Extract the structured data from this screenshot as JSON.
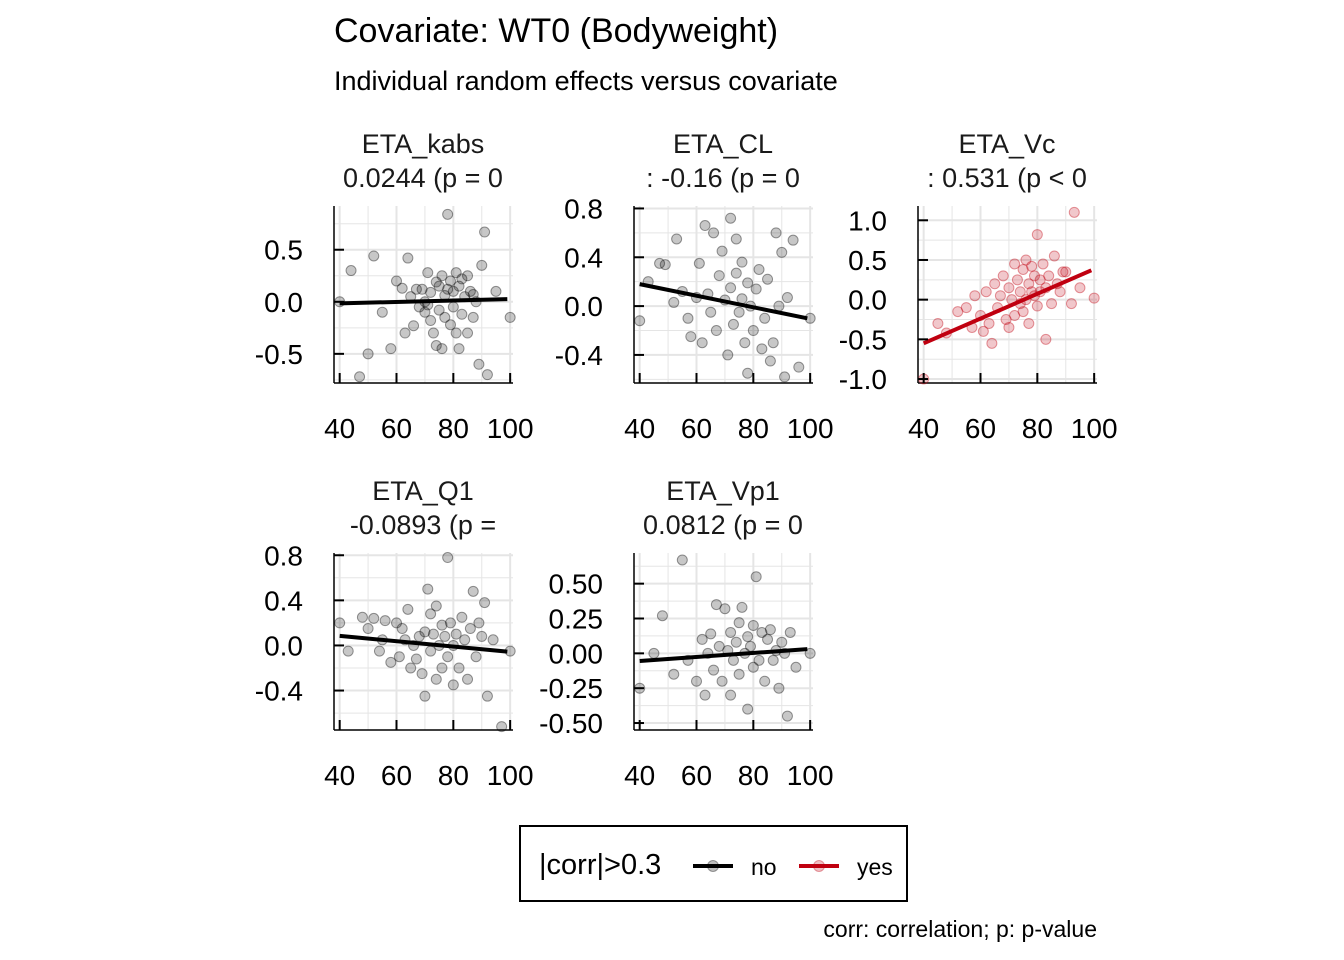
{
  "title": "Covariate: WT0 (Bodyweight)",
  "subtitle": "Individual random effects versus covariate",
  "caption": "corr: correlation; p: p-value",
  "legend": {
    "title": "|corr|>0.3",
    "items": [
      {
        "label": "no",
        "color": "#000000"
      },
      {
        "label": "yes",
        "color": "#c00010"
      }
    ]
  },
  "colors": {
    "no": "#000000",
    "yes": "#c00010",
    "grid": "#e5e5e5"
  },
  "chart_data": [
    {
      "type": "scatter",
      "name": "ETA_kabs",
      "stat_line": "0.0244 (p = 0",
      "x_ticks": [
        40,
        60,
        80,
        100
      ],
      "y_ticks": [
        -0.5,
        0.0,
        0.5
      ],
      "y_tick_labels": [
        "-0.5",
        "0.0",
        "0.5"
      ],
      "xlim": [
        38,
        101
      ],
      "ylim": [
        -0.78,
        0.92
      ],
      "highlight": false,
      "fit": [
        [
          40,
          -0.015
        ],
        [
          99,
          0.025
        ]
      ],
      "points": [
        [
          40,
          0.0
        ],
        [
          44,
          0.3
        ],
        [
          47,
          -0.72
        ],
        [
          50,
          -0.5
        ],
        [
          52,
          0.44
        ],
        [
          55,
          -0.1
        ],
        [
          58,
          -0.45
        ],
        [
          60,
          0.2
        ],
        [
          62,
          0.13
        ],
        [
          63,
          -0.3
        ],
        [
          64,
          0.42
        ],
        [
          65,
          0.05
        ],
        [
          67,
          0.12
        ],
        [
          68,
          -0.05
        ],
        [
          69,
          0.12
        ],
        [
          70,
          0.0
        ],
        [
          71,
          0.28
        ],
        [
          72,
          0.09
        ],
        [
          72,
          -0.18
        ],
        [
          73,
          -0.3
        ],
        [
          74,
          -0.42
        ],
        [
          75,
          0.15
        ],
        [
          75,
          -0.08
        ],
        [
          76,
          0.25
        ],
        [
          77,
          0.06
        ],
        [
          77,
          -0.15
        ],
        [
          78,
          0.84
        ],
        [
          78,
          0.12
        ],
        [
          79,
          -0.22
        ],
        [
          79,
          0.2
        ],
        [
          80,
          -0.05
        ],
        [
          80,
          0.1
        ],
        [
          81,
          0.28
        ],
        [
          81,
          -0.3
        ],
        [
          82,
          0.15
        ],
        [
          82,
          -0.45
        ],
        [
          83,
          -0.12
        ],
        [
          84,
          0.05
        ],
        [
          85,
          -0.3
        ],
        [
          85,
          0.25
        ],
        [
          86,
          0.1
        ],
        [
          87,
          -0.15
        ],
        [
          88,
          0.0
        ],
        [
          89,
          -0.6
        ],
        [
          90,
          0.35
        ],
        [
          91,
          0.67
        ],
        [
          92,
          -0.7
        ],
        [
          95,
          0.1
        ],
        [
          100,
          -0.15
        ],
        [
          66,
          -0.23
        ],
        [
          70,
          -0.1
        ],
        [
          74,
          0.19
        ],
        [
          76,
          -0.45
        ],
        [
          83,
          0.22
        ],
        [
          87,
          0.07
        ],
        [
          71,
          -0.03
        ]
      ]
    },
    {
      "type": "scatter",
      "name": "ETA_CL",
      "stat_line": ": -0.16 (p = 0",
      "x_ticks": [
        40,
        60,
        80,
        100
      ],
      "y_ticks": [
        -0.4,
        0.0,
        0.4,
        0.8
      ],
      "y_tick_labels": [
        "-0.4",
        "0.0",
        "0.4",
        "0.8"
      ],
      "xlim": [
        38,
        101
      ],
      "ylim": [
        -0.63,
        0.82
      ],
      "highlight": false,
      "fit": [
        [
          40,
          0.18
        ],
        [
          99,
          -0.1
        ]
      ],
      "points": [
        [
          40,
          -0.12
        ],
        [
          43,
          0.2
        ],
        [
          47,
          0.35
        ],
        [
          49,
          0.34
        ],
        [
          52,
          0.03
        ],
        [
          53,
          0.55
        ],
        [
          55,
          0.12
        ],
        [
          57,
          -0.1
        ],
        [
          58,
          -0.25
        ],
        [
          60,
          0.07
        ],
        [
          61,
          0.35
        ],
        [
          62,
          -0.3
        ],
        [
          63,
          0.66
        ],
        [
          64,
          0.1
        ],
        [
          65,
          -0.05
        ],
        [
          66,
          0.6
        ],
        [
          67,
          -0.2
        ],
        [
          68,
          0.25
        ],
        [
          69,
          0.45
        ],
        [
          70,
          0.05
        ],
        [
          71,
          -0.4
        ],
        [
          72,
          0.72
        ],
        [
          72,
          0.15
        ],
        [
          73,
          -0.15
        ],
        [
          74,
          0.55
        ],
        [
          74,
          0.27
        ],
        [
          75,
          -0.05
        ],
        [
          76,
          0.06
        ],
        [
          76,
          0.36
        ],
        [
          77,
          -0.3
        ],
        [
          78,
          0.19
        ],
        [
          78,
          -0.55
        ],
        [
          79,
          0.0
        ],
        [
          80,
          -0.2
        ],
        [
          81,
          0.14
        ],
        [
          82,
          0.3
        ],
        [
          83,
          -0.35
        ],
        [
          84,
          -0.1
        ],
        [
          85,
          0.22
        ],
        [
          86,
          -0.45
        ],
        [
          87,
          -0.3
        ],
        [
          88,
          0.6
        ],
        [
          89,
          0.0
        ],
        [
          90,
          0.44
        ],
        [
          91,
          -0.58
        ],
        [
          92,
          0.07
        ],
        [
          94,
          0.54
        ],
        [
          96,
          -0.5
        ],
        [
          100,
          -0.1
        ]
      ]
    },
    {
      "type": "scatter",
      "name": "ETA_Vc",
      "stat_line": ": 0.531 (p < 0",
      "x_ticks": [
        40,
        60,
        80,
        100
      ],
      "y_ticks": [
        -1.0,
        -0.5,
        0.0,
        0.5,
        1.0
      ],
      "y_tick_labels": [
        "-1.0",
        "-0.5",
        "0.0",
        "0.5",
        "1.0"
      ],
      "xlim": [
        38,
        101
      ],
      "ylim": [
        -1.05,
        1.18
      ],
      "highlight": true,
      "fit": [
        [
          40,
          -0.55
        ],
        [
          99,
          0.37
        ]
      ],
      "points": [
        [
          40,
          -1.0
        ],
        [
          45,
          -0.3
        ],
        [
          48,
          -0.42
        ],
        [
          52,
          -0.15
        ],
        [
          55,
          -0.1
        ],
        [
          57,
          -0.35
        ],
        [
          58,
          0.05
        ],
        [
          60,
          -0.2
        ],
        [
          61,
          -0.4
        ],
        [
          62,
          0.1
        ],
        [
          63,
          -0.3
        ],
        [
          64,
          -0.55
        ],
        [
          65,
          0.2
        ],
        [
          66,
          -0.1
        ],
        [
          67,
          0.05
        ],
        [
          68,
          0.3
        ],
        [
          69,
          -0.25
        ],
        [
          70,
          0.15
        ],
        [
          70,
          -0.35
        ],
        [
          71,
          0.0
        ],
        [
          72,
          0.45
        ],
        [
          72,
          -0.2
        ],
        [
          73,
          0.25
        ],
        [
          74,
          0.1
        ],
        [
          74,
          -0.05
        ],
        [
          75,
          0.38
        ],
        [
          75,
          -0.15
        ],
        [
          76,
          0.5
        ],
        [
          76,
          0.0
        ],
        [
          77,
          0.2
        ],
        [
          77,
          -0.3
        ],
        [
          78,
          0.42
        ],
        [
          78,
          0.1
        ],
        [
          79,
          0.05
        ],
        [
          79,
          0.3
        ],
        [
          80,
          0.82
        ],
        [
          80,
          -0.08
        ],
        [
          81,
          0.25
        ],
        [
          81,
          0.1
        ],
        [
          82,
          0.45
        ],
        [
          83,
          -0.5
        ],
        [
          83,
          0.15
        ],
        [
          84,
          0.3
        ],
        [
          85,
          -0.05
        ],
        [
          86,
          0.55
        ],
        [
          87,
          0.2
        ],
        [
          88,
          0.1
        ],
        [
          89,
          0.35
        ],
        [
          90,
          0.35
        ],
        [
          92,
          -0.05
        ],
        [
          93,
          1.1
        ],
        [
          95,
          0.15
        ],
        [
          100,
          0.02
        ]
      ]
    },
    {
      "type": "scatter",
      "name": "ETA_Q1",
      "stat_line": "-0.0893 (p =",
      "x_ticks": [
        40,
        60,
        80,
        100
      ],
      "y_ticks": [
        -0.4,
        0.0,
        0.4,
        0.8
      ],
      "y_tick_labels": [
        "-0.4",
        "0.0",
        "0.4",
        "0.8"
      ],
      "xlim": [
        38,
        101
      ],
      "ylim": [
        -0.75,
        0.82
      ],
      "highlight": false,
      "fit": [
        [
          40,
          0.085
        ],
        [
          99,
          -0.055
        ]
      ],
      "points": [
        [
          40,
          0.2
        ],
        [
          43,
          -0.05
        ],
        [
          48,
          0.25
        ],
        [
          50,
          0.15
        ],
        [
          52,
          0.24
        ],
        [
          54,
          -0.05
        ],
        [
          55,
          0.05
        ],
        [
          56,
          0.22
        ],
        [
          58,
          -0.15
        ],
        [
          60,
          0.2
        ],
        [
          61,
          -0.1
        ],
        [
          62,
          0.15
        ],
        [
          63,
          0.05
        ],
        [
          64,
          0.32
        ],
        [
          65,
          -0.2
        ],
        [
          66,
          0.0
        ],
        [
          67,
          -0.12
        ],
        [
          68,
          0.08
        ],
        [
          69,
          -0.25
        ],
        [
          70,
          -0.45
        ],
        [
          70,
          0.12
        ],
        [
          71,
          0.5
        ],
        [
          72,
          -0.05
        ],
        [
          72,
          0.28
        ],
        [
          73,
          0.1
        ],
        [
          74,
          -0.3
        ],
        [
          74,
          0.35
        ],
        [
          75,
          0.0
        ],
        [
          76,
          0.18
        ],
        [
          76,
          -0.2
        ],
        [
          77,
          0.08
        ],
        [
          78,
          0.78
        ],
        [
          78,
          -0.1
        ],
        [
          79,
          0.2
        ],
        [
          80,
          0.0
        ],
        [
          80,
          -0.35
        ],
        [
          81,
          0.1
        ],
        [
          82,
          -0.2
        ],
        [
          83,
          0.25
        ],
        [
          84,
          0.05
        ],
        [
          85,
          -0.3
        ],
        [
          86,
          0.15
        ],
        [
          87,
          0.48
        ],
        [
          88,
          -0.1
        ],
        [
          89,
          0.2
        ],
        [
          90,
          0.08
        ],
        [
          91,
          0.38
        ],
        [
          92,
          -0.45
        ],
        [
          94,
          0.05
        ],
        [
          97,
          -0.72
        ],
        [
          100,
          -0.05
        ]
      ]
    },
    {
      "type": "scatter",
      "name": "ETA_Vp1",
      "stat_line": "0.0812 (p = 0",
      "x_ticks": [
        40,
        60,
        80,
        100
      ],
      "y_ticks": [
        -0.5,
        -0.25,
        0.0,
        0.25,
        0.5
      ],
      "y_tick_labels": [
        "-0.50",
        "-0.25",
        "0.00",
        "0.25",
        "0.50"
      ],
      "xlim": [
        38,
        101
      ],
      "ylim": [
        -0.55,
        0.72
      ],
      "highlight": false,
      "fit": [
        [
          40,
          -0.055
        ],
        [
          99,
          0.03
        ]
      ],
      "points": [
        [
          40,
          -0.25
        ],
        [
          45,
          0.0
        ],
        [
          48,
          0.27
        ],
        [
          52,
          -0.15
        ],
        [
          55,
          0.67
        ],
        [
          57,
          -0.05
        ],
        [
          60,
          -0.2
        ],
        [
          62,
          0.1
        ],
        [
          63,
          -0.3
        ],
        [
          64,
          0.0
        ],
        [
          65,
          0.14
        ],
        [
          66,
          -0.12
        ],
        [
          67,
          0.35
        ],
        [
          68,
          0.05
        ],
        [
          69,
          -0.2
        ],
        [
          70,
          0.32
        ],
        [
          71,
          0.02
        ],
        [
          72,
          -0.3
        ],
        [
          72,
          0.15
        ],
        [
          73,
          -0.05
        ],
        [
          74,
          0.08
        ],
        [
          75,
          0.22
        ],
        [
          75,
          -0.15
        ],
        [
          76,
          0.33
        ],
        [
          77,
          0.0
        ],
        [
          78,
          -0.4
        ],
        [
          78,
          0.12
        ],
        [
          79,
          0.05
        ],
        [
          80,
          -0.1
        ],
        [
          80,
          0.2
        ],
        [
          81,
          0.55
        ],
        [
          82,
          -0.05
        ],
        [
          83,
          0.15
        ],
        [
          84,
          -0.2
        ],
        [
          85,
          0.1
        ],
        [
          86,
          0.17
        ],
        [
          87,
          -0.05
        ],
        [
          88,
          0.02
        ],
        [
          89,
          -0.25
        ],
        [
          90,
          0.08
        ],
        [
          91,
          0.0
        ],
        [
          92,
          -0.45
        ],
        [
          93,
          0.15
        ],
        [
          95,
          -0.1
        ],
        [
          100,
          0.0
        ]
      ]
    }
  ]
}
